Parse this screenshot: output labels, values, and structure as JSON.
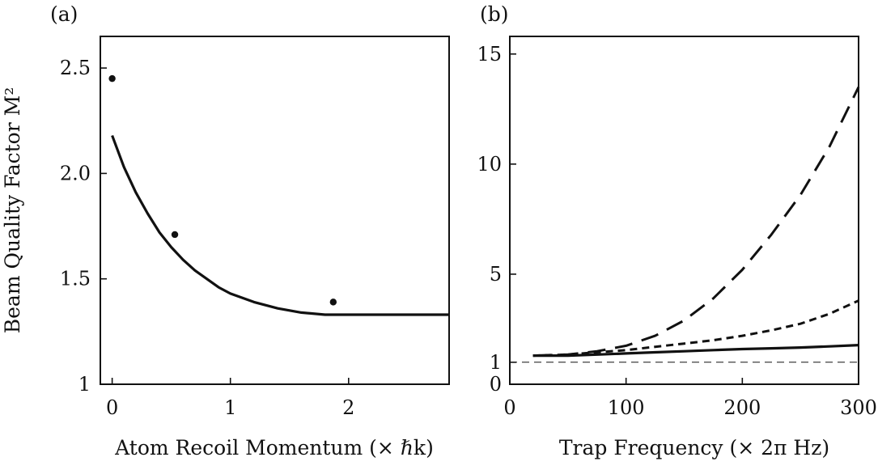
{
  "chart_data": [
    {
      "panel": "(a)",
      "type": "scatter",
      "xlabel": "Atom Recoil Momentum (× ℏk)",
      "ylabel": "Beam Quality Factor M²",
      "xlim": [
        -0.1,
        2.85
      ],
      "ylim": [
        1.0,
        2.65
      ],
      "xticks": [
        0,
        1,
        2
      ],
      "yticks": [
        1,
        1.5,
        2.0,
        2.5
      ],
      "ytick_labels": [
        "1",
        "1.5",
        "2.0",
        "2.5"
      ],
      "points": [
        {
          "x": 0.0,
          "y": 2.45
        },
        {
          "x": 0.53,
          "y": 1.71
        },
        {
          "x": 1.87,
          "y": 1.39
        }
      ],
      "curve": {
        "x": [
          0.0,
          0.1,
          0.2,
          0.3,
          0.4,
          0.5,
          0.6,
          0.7,
          0.8,
          0.9,
          1.0,
          1.2,
          1.4,
          1.6,
          1.8,
          2.0,
          2.2,
          2.4,
          2.6,
          2.85
        ],
        "y": [
          2.18,
          2.03,
          1.91,
          1.81,
          1.72,
          1.65,
          1.59,
          1.54,
          1.5,
          1.46,
          1.43,
          1.39,
          1.36,
          1.34,
          1.33,
          1.33,
          1.33,
          1.33,
          1.33,
          1.33
        ]
      }
    },
    {
      "panel": "(b)",
      "type": "line",
      "xlabel": "Trap Frequency (× 2π Hz)",
      "ylabel": "",
      "xlim": [
        0,
        300
      ],
      "ylim": [
        0,
        15.8
      ],
      "xticks": [
        0,
        100,
        200,
        300
      ],
      "yticks": [
        0,
        1,
        5,
        10,
        15
      ],
      "series": [
        {
          "style": "long-dash",
          "x": [
            20,
            50,
            75,
            100,
            125,
            150,
            175,
            200,
            225,
            250,
            275,
            300
          ],
          "y": [
            1.3,
            1.35,
            1.5,
            1.75,
            2.2,
            2.9,
            3.9,
            5.2,
            6.8,
            8.6,
            10.8,
            13.5
          ]
        },
        {
          "style": "short-dash",
          "x": [
            20,
            50,
            75,
            100,
            125,
            150,
            175,
            200,
            225,
            250,
            275,
            300
          ],
          "y": [
            1.3,
            1.35,
            1.45,
            1.55,
            1.7,
            1.85,
            2.0,
            2.2,
            2.45,
            2.75,
            3.2,
            3.8
          ]
        },
        {
          "style": "solid",
          "x": [
            20,
            50,
            75,
            100,
            125,
            150,
            175,
            200,
            225,
            250,
            275,
            300
          ],
          "y": [
            1.3,
            1.3,
            1.35,
            1.4,
            1.45,
            1.5,
            1.55,
            1.6,
            1.63,
            1.67,
            1.72,
            1.78
          ]
        }
      ],
      "reference_line": {
        "y": 1,
        "style": "thin-dash"
      }
    }
  ]
}
